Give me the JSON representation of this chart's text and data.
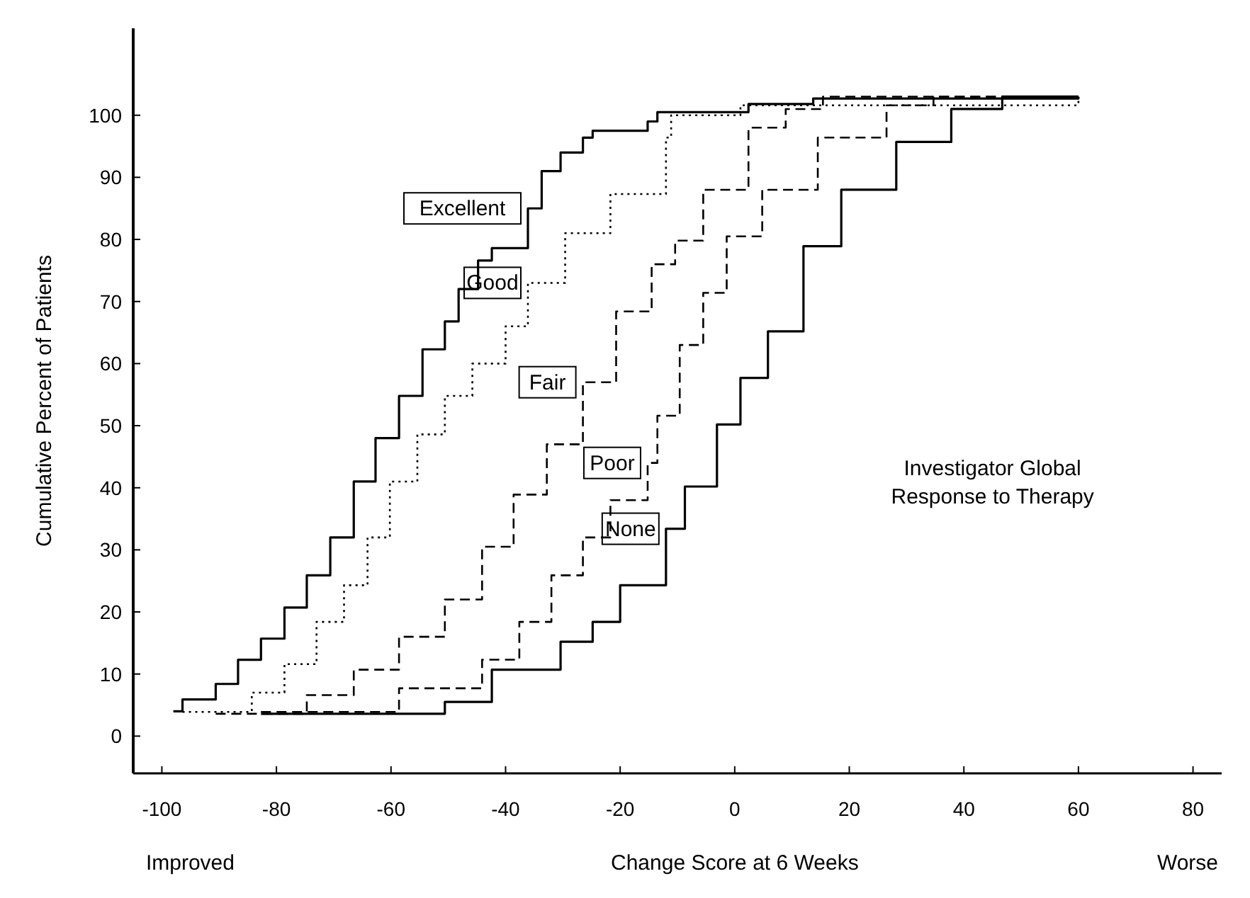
{
  "chart_data": {
    "type": "step",
    "xlabel": "Change Score at 6 Weeks",
    "ylabel": "Cumulative Percent of Patients",
    "xlim": [
      -105,
      85
    ],
    "xticks": [
      -100,
      -80,
      -60,
      -40,
      -20,
      0,
      20,
      40,
      60,
      80
    ],
    "ylim": [
      -6,
      114
    ],
    "yticks": [
      0,
      10,
      20,
      30,
      40,
      50,
      60,
      70,
      80,
      90,
      100
    ],
    "grid": false,
    "annotations": [
      "Investigator Global Response to Therapy",
      "Improved",
      "Worse"
    ],
    "series": [
      {
        "name": "Excellent",
        "color": "#000000",
        "line_style": "solid",
        "x": [
          -98,
          -96.4,
          -90.6,
          -86.7,
          -82.7,
          -78.6,
          -74.7,
          -70.6,
          -66.5,
          -62.7,
          -58.6,
          -54.5,
          -50.6,
          -48.2,
          -44.8,
          -42.4,
          -36.1,
          -33.7,
          -30.4,
          -26.5,
          -24.8,
          -15.2,
          -13.5,
          2.4,
          13.7,
          60
        ],
        "values": [
          4,
          5.9,
          8.4,
          12.3,
          15.7,
          20.7,
          25.9,
          32,
          41,
          48,
          54.8,
          62.3,
          66.8,
          72,
          76.6,
          78.6,
          85,
          91,
          94,
          96.4,
          97.5,
          99,
          100.5,
          101.8,
          102.7,
          103
        ]
      },
      {
        "name": "Good",
        "color": "#000000",
        "line_style": "dotted",
        "x": [
          -96.4,
          -84.3,
          -78.6,
          -73,
          -68.2,
          -64.1,
          -60.2,
          -55.4,
          -50.6,
          -45.8,
          -40,
          -36.1,
          -29.6,
          -21.7,
          -12,
          -11.1,
          1,
          60
        ],
        "values": [
          3.9,
          7,
          11.6,
          18.4,
          24.3,
          32,
          41,
          48.6,
          54.8,
          60,
          66,
          73,
          81,
          87.3,
          96.4,
          100,
          101.6,
          103
        ]
      },
      {
        "name": "Fair",
        "color": "#000000",
        "line_style": "dashed",
        "x": [
          -90.6,
          -74.7,
          -66.5,
          -58.6,
          -50.6,
          -44.1,
          -38.6,
          -32.8,
          -26.5,
          -20.7,
          -14.5,
          -10.4,
          -5.5,
          2.4,
          8.9,
          15.4,
          60
        ],
        "values": [
          3.6,
          6.6,
          10.7,
          16,
          22,
          30.5,
          38.9,
          47,
          57,
          68.4,
          76,
          79.8,
          88,
          98,
          101,
          103,
          103
        ]
      },
      {
        "name": "Poor",
        "color": "#000000",
        "line_style": "dashed",
        "x": [
          -82.7,
          -58.6,
          -44.1,
          -37.6,
          -32,
          -26.5,
          -21.7,
          -15.2,
          -13.5,
          -9.6,
          -5.5,
          -1.4,
          4.8,
          14.5,
          26.5,
          34.7,
          60
        ],
        "values": [
          3.9,
          7.7,
          12.3,
          18.4,
          25.9,
          32,
          38,
          44,
          51.6,
          63,
          71.4,
          80.5,
          88,
          96.4,
          101.6,
          103,
          103
        ]
      },
      {
        "name": "None",
        "color": "#000000",
        "line_style": "solid",
        "x": [
          -82.7,
          -50.6,
          -42.4,
          -30.4,
          -24.8,
          -20,
          -12,
          -8.7,
          -3.1,
          1,
          5.8,
          12,
          18.6,
          28.2,
          37.8,
          46.7,
          60
        ],
        "values": [
          3.6,
          5.5,
          10.7,
          15.2,
          18.4,
          24.3,
          33.4,
          40.2,
          50.2,
          57.7,
          65.2,
          78.9,
          88,
          95.7,
          101,
          103,
          103
        ]
      }
    ]
  }
}
